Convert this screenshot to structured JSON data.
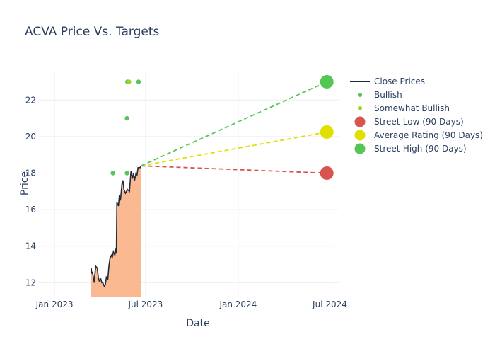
{
  "chart_data": {
    "type": "line",
    "title": "ACVA Price Vs. Targets",
    "xlabel": "Date",
    "ylabel": "Price",
    "x_ticks": [
      "Jan 2023",
      "Jul 2023",
      "Jan 2024",
      "Jul 2024"
    ],
    "y_ticks": [
      12,
      14,
      16,
      18,
      20,
      22
    ],
    "ylim": [
      11.2,
      23.6
    ],
    "grid": true,
    "legend_position": "right",
    "series": [
      {
        "name": "Close Prices",
        "kind": "line-area",
        "color": "#1f2a38",
        "fill": "#fbb992",
        "points": [
          [
            "2023-03-15",
            12.8
          ],
          [
            "2023-03-16",
            12.5
          ],
          [
            "2023-03-17",
            12.6
          ],
          [
            "2023-03-20",
            12.2
          ],
          [
            "2023-03-21",
            12.0
          ],
          [
            "2023-03-22",
            12.4
          ],
          [
            "2023-03-24",
            12.9
          ],
          [
            "2023-03-27",
            12.8
          ],
          [
            "2023-03-29",
            12.3
          ],
          [
            "2023-03-31",
            12.1
          ],
          [
            "2023-04-03",
            12.2
          ],
          [
            "2023-04-05",
            12.0
          ],
          [
            "2023-04-07",
            12.0
          ],
          [
            "2023-04-10",
            11.8
          ],
          [
            "2023-04-12",
            11.9
          ],
          [
            "2023-04-14",
            12.3
          ],
          [
            "2023-04-17",
            12.2
          ],
          [
            "2023-04-19",
            12.9
          ],
          [
            "2023-04-21",
            13.3
          ],
          [
            "2023-04-24",
            13.5
          ],
          [
            "2023-04-26",
            13.4
          ],
          [
            "2023-04-28",
            13.7
          ],
          [
            "2023-05-01",
            13.5
          ],
          [
            "2023-05-02",
            13.9
          ],
          [
            "2023-05-03",
            13.6
          ],
          [
            "2023-05-04",
            13.8
          ],
          [
            "2023-05-05",
            16.4
          ],
          [
            "2023-05-08",
            16.2
          ],
          [
            "2023-05-10",
            16.8
          ],
          [
            "2023-05-12",
            16.5
          ],
          [
            "2023-05-15",
            17.4
          ],
          [
            "2023-05-17",
            17.6
          ],
          [
            "2023-05-19",
            17.1
          ],
          [
            "2023-05-22",
            16.9
          ],
          [
            "2023-05-24",
            17.0
          ],
          [
            "2023-05-26",
            17.1
          ],
          [
            "2023-05-30",
            17.0
          ],
          [
            "2023-06-01",
            17.8
          ],
          [
            "2023-06-02",
            18.1
          ],
          [
            "2023-06-05",
            17.7
          ],
          [
            "2023-06-07",
            18.0
          ],
          [
            "2023-06-09",
            17.6
          ],
          [
            "2023-06-12",
            18.0
          ],
          [
            "2023-06-14",
            17.9
          ],
          [
            "2023-06-16",
            18.3
          ],
          [
            "2023-06-20",
            18.3
          ],
          [
            "2023-06-22",
            18.4
          ]
        ]
      },
      {
        "name": "Bullish",
        "kind": "markers",
        "color": "#5ac35a",
        "points": [
          [
            "2023-04-27",
            18.0
          ],
          [
            "2023-05-25",
            21.0
          ],
          [
            "2023-05-26",
            23.0
          ],
          [
            "2023-05-25",
            18.0
          ],
          [
            "2023-06-17",
            23.0
          ]
        ]
      },
      {
        "name": "Somewhat Bullish",
        "kind": "markers",
        "color": "#9ad42a",
        "points": [
          [
            "2023-05-29",
            23.0
          ]
        ]
      },
      {
        "name": "Street-Low (90 Days)",
        "kind": "target",
        "color": "#d9534f",
        "from": [
          "2023-06-22",
          18.4
        ],
        "to": [
          "2024-06-25",
          18.0
        ]
      },
      {
        "name": "Average Rating (90 Days)",
        "kind": "target",
        "color": "#dfe000",
        "from": [
          "2023-06-22",
          18.4
        ],
        "to": [
          "2024-06-25",
          20.25
        ]
      },
      {
        "name": "Street-High (90 Days)",
        "kind": "target",
        "color": "#53c653",
        "from": [
          "2023-06-22",
          18.4
        ],
        "to": [
          "2024-06-25",
          23.0
        ]
      }
    ]
  }
}
